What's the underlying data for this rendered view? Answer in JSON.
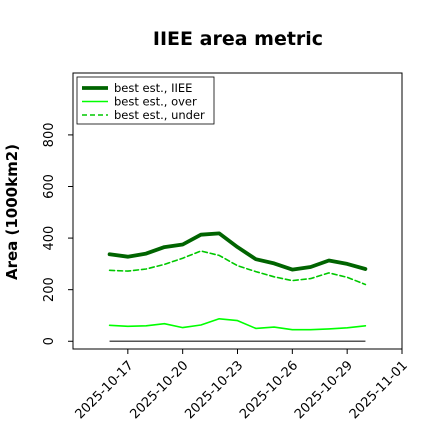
{
  "chart_data": {
    "type": "line",
    "title": "IIEE area metric",
    "xlabel": "",
    "ylabel": "Area (1000km2)",
    "x_ticks": [
      "2025-10-17",
      "2025-10-20",
      "2025-10-23",
      "2025-10-26",
      "2025-10-29",
      "2025-11-01"
    ],
    "y_ticks": [
      "0",
      "200",
      "400",
      "600",
      "800"
    ],
    "ylim": [
      -30,
      1040
    ],
    "xlim": [
      "2025-10-14",
      "2025-11-01"
    ],
    "grid": false,
    "legend_position": "top-left",
    "x": [
      "2025-10-16",
      "2025-10-17",
      "2025-10-18",
      "2025-10-19",
      "2025-10-20",
      "2025-10-21",
      "2025-10-22",
      "2025-10-23",
      "2025-10-24",
      "2025-10-25",
      "2025-10-26",
      "2025-10-27",
      "2025-10-28",
      "2025-10-29",
      "2025-10-30"
    ],
    "series": [
      {
        "name": "best est., IIEE",
        "color": "#006400",
        "style": "solid",
        "values": [
          337,
          328,
          340,
          365,
          375,
          413,
          418,
          365,
          318,
          302,
          278,
          288,
          313,
          300,
          280
        ]
      },
      {
        "name": "best est., over",
        "color": "#00ff00",
        "style": "solid",
        "values": [
          62,
          58,
          60,
          68,
          53,
          63,
          87,
          80,
          50,
          55,
          45,
          45,
          48,
          52,
          60
        ]
      },
      {
        "name": "best est., under",
        "color": "#00c800",
        "style": "dashed",
        "values": [
          275,
          272,
          280,
          298,
          322,
          350,
          333,
          293,
          270,
          250,
          235,
          243,
          265,
          248,
          220
        ]
      }
    ],
    "reference_line": {
      "value": 0,
      "color": "#555555"
    }
  }
}
